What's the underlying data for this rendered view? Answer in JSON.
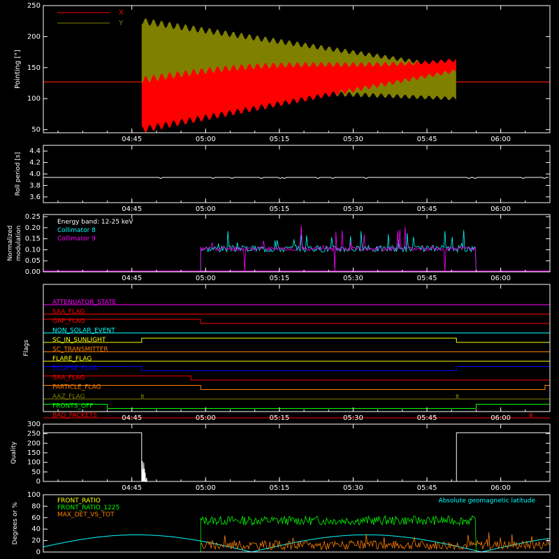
{
  "time_ticks": [
    "04:45",
    "05:00",
    "05:15",
    "05:30",
    "05:45",
    "06:00"
  ],
  "colors": {
    "bg": "#000000",
    "axes": "#ffffff",
    "red": "#ff0000",
    "olive": "#808000",
    "cyan": "#00ffff",
    "magenta": "#ff00ff",
    "yellow": "#ffff00",
    "green": "#00ff00",
    "orange": "#ff8000",
    "blue": "#0000ff",
    "white": "#ffffff"
  },
  "chart_data": [
    {
      "type": "line",
      "id": "pointing",
      "ylabel": "Pointing [\"]",
      "ylim": [
        45,
        250
      ],
      "yticks": [
        "50",
        "100",
        "150",
        "200",
        "250"
      ],
      "xrange": [
        "04:27",
        "06:10"
      ],
      "legend": [
        {
          "name": "X",
          "color": "#ff0000"
        },
        {
          "name": "Y",
          "color": "#808000"
        }
      ],
      "series": [
        {
          "name": "X",
          "color": "#ff0000",
          "shape": "oscillation",
          "x": [
            "04:47",
            "05:51"
          ],
          "min_start": 50,
          "min_end": 145,
          "max_start": 130,
          "max_end": 170,
          "baseline": 127
        },
        {
          "name": "Y",
          "color": "#808000",
          "shape": "oscillation",
          "x": [
            "04:47",
            "05:51"
          ],
          "min_start": 120,
          "min_end": 100,
          "max_start": 225,
          "max_end": 150,
          "baseline": 127
        }
      ]
    },
    {
      "type": "line",
      "id": "roll",
      "ylabel": "Roll period [s]",
      "ylim": [
        3.5,
        4.5
      ],
      "yticks": [
        "3.6",
        "3.8",
        "4.0",
        "4.2",
        "4.4"
      ],
      "series": [
        {
          "name": "roll",
          "color": "#ffffff",
          "value": 3.94
        }
      ]
    },
    {
      "type": "line",
      "id": "modulation",
      "ylabel": "Normalized modulation",
      "ylim": [
        0,
        0.26
      ],
      "yticks": [
        "0.00",
        "0.05",
        "0.10",
        "0.15",
        "0.20",
        "0.25"
      ],
      "annotations": [
        "Energy band: 12-25 keV",
        "Collimator 8",
        "Collimator 9"
      ],
      "annotation_colors": [
        "#ffffff",
        "#00ffff",
        "#ff00ff"
      ],
      "active_range": [
        "04:59",
        "05:55"
      ],
      "mean_level": 0.1
    },
    {
      "type": "line",
      "id": "flags",
      "ylabel": "Flags",
      "flags": [
        {
          "name": "ATTENUATOR_STATE",
          "color": "#ff00ff",
          "segments": [
            [
              0,
              0
            ]
          ]
        },
        {
          "name": "SAA_FLAG",
          "color": "#ff0000",
          "segments": []
        },
        {
          "name": "GAP_FLAG",
          "color": "#ff0000",
          "segments": [
            [
              "04:27",
              "04:59",
              1
            ]
          ]
        },
        {
          "name": "NON_SOLAR_EVENT",
          "color": "#00ffff",
          "segments": []
        },
        {
          "name": "SC_IN_SUNLIGHT",
          "color": "#ffff00",
          "segments": [
            [
              "04:47",
              "05:51",
              1
            ]
          ]
        },
        {
          "name": "SC_TRANSMITTER",
          "color": "#ff8000",
          "segments": []
        },
        {
          "name": "FLARE_FLAG",
          "color": "#ffff00",
          "segments": []
        },
        {
          "name": "ECLIPSE_FLAG",
          "color": "#0000ff",
          "segments": [
            [
              "04:27",
              "04:47",
              1
            ],
            [
              "05:51",
              "06:10",
              1
            ]
          ]
        },
        {
          "name": "SAA_FLAG",
          "color": "#ff0000",
          "segments": [
            [
              "04:27",
              "04:57",
              1
            ]
          ]
        },
        {
          "name": "PARTICLE_FLAG",
          "color": "#ff8000",
          "segments": [
            [
              "04:27",
              "04:59",
              1
            ],
            [
              "06:09",
              "06:10",
              1
            ]
          ]
        },
        {
          "name": "AAZ_FLAG",
          "color": "#808000",
          "segments": [
            [
              "04:47",
              "04:47.3",
              1
            ],
            [
              "05:51",
              "05:51.3",
              1
            ]
          ]
        },
        {
          "name": "FRONTS_OFF",
          "color": "#00ff00",
          "segments": [
            [
              "04:27",
              "04:40",
              1
            ],
            [
              "05:55",
              "06:10",
              1
            ]
          ]
        },
        {
          "name": "BAD_PACKETS",
          "color": "#ff0000",
          "segments": [
            [
              "06:06",
              "06:06.3",
              1
            ]
          ]
        }
      ]
    },
    {
      "type": "line",
      "id": "quality",
      "ylabel": "Quality",
      "ylim": [
        0,
        300
      ],
      "yticks": [
        "0",
        "50",
        "100",
        "150",
        "200",
        "250",
        "300"
      ],
      "series": [
        {
          "name": "quality",
          "color": "#ffffff",
          "high": 255,
          "high_ranges": [
            [
              "04:27",
              "04:47"
            ],
            [
              "05:51",
              "06:10"
            ]
          ]
        }
      ]
    },
    {
      "type": "line",
      "id": "ratios",
      "ylabel": "Degrees or %",
      "ylim": [
        0,
        100
      ],
      "yticks": [
        "0",
        "20",
        "40",
        "60",
        "80",
        "100"
      ],
      "legend": [
        {
          "name": "FRONT_RATIO",
          "color": "#ffff00"
        },
        {
          "name": "FRONT_RATIO_1225",
          "color": "#00ff00"
        },
        {
          "name": "MAX_DET_VS_TOT",
          "color": "#ff8000"
        }
      ],
      "right_label": {
        "name": "Absolute geomagnetic latitude",
        "color": "#00ffff"
      },
      "series": [
        {
          "name": "FRONT_RATIO_1225",
          "color": "#00ff00",
          "range": [
            "04:59",
            "05:55"
          ],
          "mean": 55
        },
        {
          "name": "MAX_DET_VS_TOT",
          "color": "#ff8000",
          "range": [
            "04:59",
            "06:10"
          ],
          "mean": 12
        },
        {
          "name": "Absolute geomagnetic latitude",
          "color": "#00ffff",
          "peak": 30
        }
      ]
    }
  ]
}
